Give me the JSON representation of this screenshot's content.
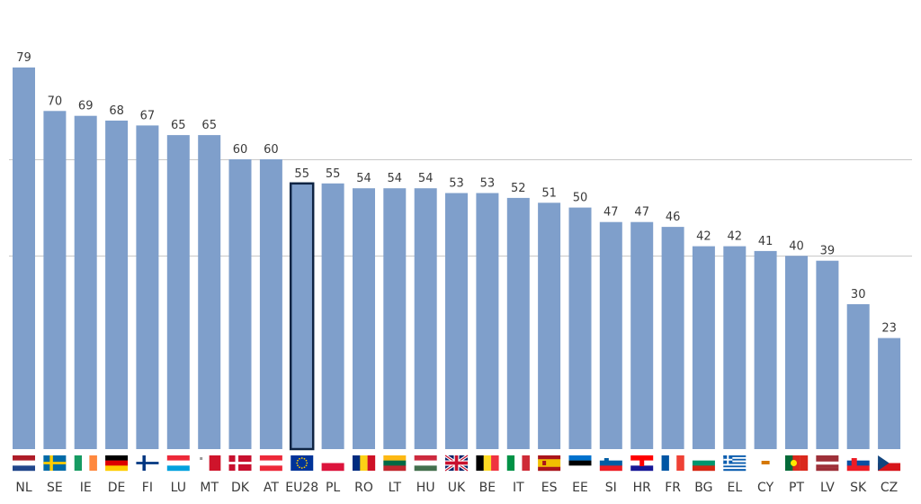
{
  "chart_data": {
    "type": "bar",
    "categories": [
      "NL",
      "SE",
      "IE",
      "DE",
      "FI",
      "LU",
      "MT",
      "DK",
      "AT",
      "EU28",
      "PL",
      "RO",
      "LT",
      "HU",
      "UK",
      "BE",
      "IT",
      "ES",
      "EE",
      "SI",
      "HR",
      "FR",
      "BG",
      "EL",
      "CY",
      "PT",
      "LV",
      "SK",
      "CZ"
    ],
    "values": [
      79,
      70,
      69,
      68,
      67,
      65,
      65,
      60,
      60,
      55,
      55,
      54,
      54,
      54,
      53,
      53,
      52,
      51,
      50,
      47,
      47,
      46,
      42,
      42,
      41,
      40,
      39,
      30,
      23
    ],
    "labels": [
      "79",
      "70",
      "69",
      "68",
      "67",
      "65",
      "65",
      "60",
      "60",
      "55",
      "55",
      "54",
      "54",
      "54",
      "53",
      "53",
      "52",
      "51",
      "50",
      "47",
      "47",
      "46",
      "42",
      "42",
      "41",
      "40",
      "39",
      "30",
      "23"
    ],
    "highlight": "EU28",
    "ylim": [
      0,
      80
    ],
    "grid_lines_at": [
      40,
      60
    ],
    "title": "",
    "xlabel": "",
    "ylabel": "",
    "colors": {
      "bar": "#7f9fcb",
      "highlight_border": "#0f2443"
    },
    "flags": [
      "nl-flag-icon",
      "se-flag-icon",
      "ie-flag-icon",
      "de-flag-icon",
      "fi-flag-icon",
      "lu-flag-icon",
      "mt-flag-icon",
      "dk-flag-icon",
      "at-flag-icon",
      "eu-flag-icon",
      "pl-flag-icon",
      "ro-flag-icon",
      "lt-flag-icon",
      "hu-flag-icon",
      "uk-flag-icon",
      "be-flag-icon",
      "it-flag-icon",
      "es-flag-icon",
      "ee-flag-icon",
      "si-flag-icon",
      "hr-flag-icon",
      "fr-flag-icon",
      "bg-flag-icon",
      "el-flag-icon",
      "cy-flag-icon",
      "pt-flag-icon",
      "lv-flag-icon",
      "sk-flag-icon",
      "cz-flag-icon"
    ]
  }
}
